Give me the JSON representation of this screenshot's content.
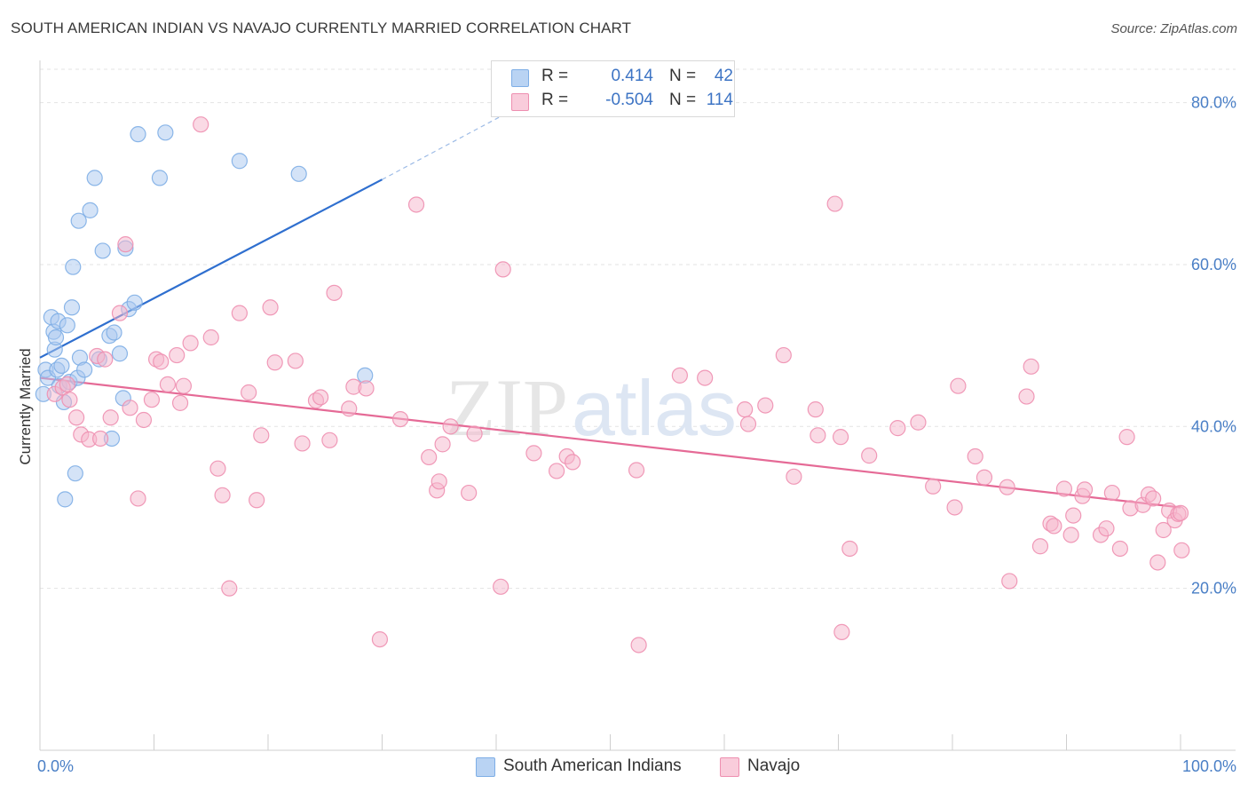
{
  "header": {
    "title": "SOUTH AMERICAN INDIAN VS NAVAJO CURRENTLY MARRIED CORRELATION CHART",
    "source": "Source: ZipAtlas.com"
  },
  "watermark": {
    "zip": "ZIP",
    "atlas": "atlas"
  },
  "legend": {
    "rows": [
      {
        "r_label": "R =",
        "r_value": "0.414",
        "n_label": "N =",
        "n_value": "42",
        "color": "#a9c8f0"
      },
      {
        "r_label": "R =",
        "r_value": "-0.504",
        "n_label": "N =",
        "n_value": "114",
        "color": "#f5b6cb"
      }
    ]
  },
  "bottom_legend": [
    {
      "label": "South American Indians",
      "color": "#a9c8f0"
    },
    {
      "label": "Navajo",
      "color": "#f5b6cb"
    }
  ],
  "chart_data": {
    "type": "scatter",
    "title": "SOUTH AMERICAN INDIAN VS NAVAJO CURRENTLY MARRIED CORRELATION CHART",
    "xlabel": "",
    "ylabel": "Currently Married",
    "xlim": [
      0,
      100
    ],
    "ylim": [
      0,
      85
    ],
    "x_tick_labels": {
      "left": "0.0%",
      "right": "100.0%"
    },
    "y_ticks": [
      {
        "value": 20,
        "label": "20.0%"
      },
      {
        "value": 40,
        "label": "40.0%"
      },
      {
        "value": 60,
        "label": "60.0%"
      },
      {
        "value": 80,
        "label": "80.0%"
      }
    ],
    "x_minor_ticks": [
      10,
      20,
      30,
      40,
      50,
      60,
      70,
      80,
      90,
      100
    ],
    "grid": true,
    "series": [
      {
        "name": "South American Indians",
        "color": "#7eaee6",
        "fill": "#a9c8f0",
        "trend": {
          "x0": 0,
          "y0": 48.5,
          "x1": 30,
          "y1": 70.5,
          "dash_x1": 42,
          "dash_y1": 79.5
        },
        "points": [
          [
            0.3,
            44
          ],
          [
            0.5,
            47
          ],
          [
            0.7,
            46
          ],
          [
            1.0,
            53.5
          ],
          [
            1.2,
            51.7
          ],
          [
            1.3,
            49.5
          ],
          [
            1.4,
            51
          ],
          [
            1.5,
            47
          ],
          [
            1.6,
            53
          ],
          [
            1.7,
            45
          ],
          [
            1.9,
            47.5
          ],
          [
            2.1,
            43
          ],
          [
            2.2,
            31
          ],
          [
            2.4,
            52.5
          ],
          [
            2.6,
            45.5
          ],
          [
            2.8,
            54.7
          ],
          [
            2.9,
            59.7
          ],
          [
            3.1,
            34.2
          ],
          [
            3.3,
            46
          ],
          [
            3.4,
            65.4
          ],
          [
            3.5,
            48.5
          ],
          [
            3.9,
            47
          ],
          [
            4.4,
            66.7
          ],
          [
            4.8,
            70.7
          ],
          [
            5.2,
            48.3
          ],
          [
            5.5,
            61.7
          ],
          [
            6.1,
            51.2
          ],
          [
            6.3,
            38.5
          ],
          [
            6.5,
            51.6
          ],
          [
            7.0,
            49
          ],
          [
            7.3,
            43.5
          ],
          [
            7.5,
            62
          ],
          [
            7.8,
            54.5
          ],
          [
            8.3,
            55.3
          ],
          [
            8.6,
            76.1
          ],
          [
            10.5,
            70.7
          ],
          [
            11.0,
            76.3
          ],
          [
            17.5,
            72.8
          ],
          [
            22.7,
            71.2
          ],
          [
            28.5,
            46.3
          ]
        ]
      },
      {
        "name": "Navajo",
        "color": "#ee8fb0",
        "fill": "#f5b6cb",
        "trend": {
          "x0": 0,
          "y0": 46,
          "x1": 100,
          "y1": 30
        },
        "points": [
          [
            1.3,
            44
          ],
          [
            2.0,
            44.8
          ],
          [
            2.4,
            45.2
          ],
          [
            2.6,
            43.3
          ],
          [
            3.2,
            41.1
          ],
          [
            3.6,
            39
          ],
          [
            4.3,
            38.4
          ],
          [
            5.0,
            48.7
          ],
          [
            5.3,
            38.5
          ],
          [
            5.7,
            48.3
          ],
          [
            6.2,
            41.1
          ],
          [
            7.0,
            54
          ],
          [
            7.5,
            62.5
          ],
          [
            7.9,
            42.3
          ],
          [
            8.6,
            31.1
          ],
          [
            9.1,
            40.8
          ],
          [
            9.8,
            43.3
          ],
          [
            10.2,
            48.3
          ],
          [
            10.6,
            48
          ],
          [
            11.2,
            45.2
          ],
          [
            12.0,
            48.8
          ],
          [
            12.3,
            42.9
          ],
          [
            12.6,
            45
          ],
          [
            13.2,
            50.3
          ],
          [
            14.1,
            77.3
          ],
          [
            15.0,
            51
          ],
          [
            15.6,
            34.8
          ],
          [
            16.0,
            31.5
          ],
          [
            16.6,
            20
          ],
          [
            17.5,
            54
          ],
          [
            18.3,
            44.2
          ],
          [
            19.0,
            30.9
          ],
          [
            19.4,
            38.9
          ],
          [
            20.2,
            54.7
          ],
          [
            20.6,
            47.9
          ],
          [
            22.4,
            48.1
          ],
          [
            23.0,
            37.9
          ],
          [
            24.2,
            43.2
          ],
          [
            24.6,
            43.6
          ],
          [
            25.4,
            38.3
          ],
          [
            25.8,
            56.5
          ],
          [
            27.1,
            42.2
          ],
          [
            27.5,
            44.9
          ],
          [
            28.6,
            44.7
          ],
          [
            29.8,
            13.7
          ],
          [
            31.6,
            40.9
          ],
          [
            33.0,
            67.4
          ],
          [
            34.1,
            36.2
          ],
          [
            34.8,
            32.1
          ],
          [
            35.0,
            33.2
          ],
          [
            35.3,
            37.8
          ],
          [
            36.0,
            40
          ],
          [
            37.6,
            31.8
          ],
          [
            38.1,
            39.1
          ],
          [
            40.6,
            59.4
          ],
          [
            40.4,
            20.2
          ],
          [
            43.3,
            36.7
          ],
          [
            45.3,
            34.5
          ],
          [
            46.2,
            36.3
          ],
          [
            46.7,
            35.6
          ],
          [
            52.3,
            34.6
          ],
          [
            52.5,
            13
          ],
          [
            56.1,
            46.3
          ],
          [
            58.3,
            46
          ],
          [
            61.8,
            42.1
          ],
          [
            62.1,
            40.3
          ],
          [
            63.6,
            42.6
          ],
          [
            65.2,
            48.8
          ],
          [
            66.1,
            33.8
          ],
          [
            68.0,
            42.1
          ],
          [
            68.2,
            38.9
          ],
          [
            69.7,
            67.5
          ],
          [
            70.2,
            38.7
          ],
          [
            70.3,
            14.6
          ],
          [
            71.0,
            24.9
          ],
          [
            72.7,
            36.4
          ],
          [
            75.2,
            39.8
          ],
          [
            77.0,
            40.5
          ],
          [
            78.3,
            32.6
          ],
          [
            80.2,
            30
          ],
          [
            80.5,
            45
          ],
          [
            82.0,
            36.3
          ],
          [
            82.8,
            33.7
          ],
          [
            84.8,
            32.5
          ],
          [
            85.0,
            20.9
          ],
          [
            86.9,
            47.4
          ],
          [
            86.5,
            43.7
          ],
          [
            87.7,
            25.2
          ],
          [
            88.6,
            28
          ],
          [
            88.9,
            27.7
          ],
          [
            89.8,
            32.3
          ],
          [
            90.4,
            26.6
          ],
          [
            90.6,
            29
          ],
          [
            91.4,
            31.4
          ],
          [
            91.6,
            32.2
          ],
          [
            93.0,
            26.6
          ],
          [
            93.5,
            27.4
          ],
          [
            94.0,
            31.8
          ],
          [
            94.7,
            24.9
          ],
          [
            95.3,
            38.7
          ],
          [
            95.6,
            29.9
          ],
          [
            96.7,
            30.3
          ],
          [
            97.2,
            31.6
          ],
          [
            97.6,
            31.1
          ],
          [
            98.0,
            23.2
          ],
          [
            98.5,
            27.2
          ],
          [
            99.0,
            29.6
          ],
          [
            99.5,
            28.4
          ],
          [
            99.8,
            29.2
          ],
          [
            100.0,
            29.3
          ],
          [
            100.1,
            24.7
          ]
        ]
      }
    ]
  }
}
